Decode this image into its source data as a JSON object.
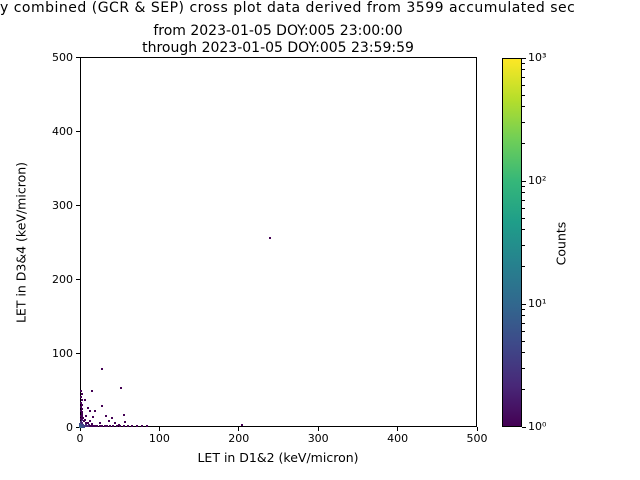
{
  "title": {
    "line1": "y combined (GCR & SEP) cross plot data derived from 3599 accumulated sec",
    "line2": "from 2023-01-05 DOY:005 23:00:00",
    "line3": "through 2023-01-05 DOY:005 23:59:59"
  },
  "chart_data": {
    "type": "scatter",
    "xlabel": "LET in D1&2 (keV/micron)",
    "ylabel": "LET in D3&4 (keV/micron)",
    "xlim": [
      0,
      500
    ],
    "ylim": [
      0,
      500
    ],
    "x_ticks": [
      0,
      100,
      200,
      300,
      400,
      500
    ],
    "y_ticks": [
      0,
      100,
      200,
      300,
      400,
      500
    ],
    "grid": false,
    "colorbar": {
      "label": "Counts",
      "scale": "log",
      "range": [
        1,
        1000
      ],
      "colormap": "viridis",
      "tick_exponents": [
        0,
        1,
        2,
        3
      ],
      "tick_labels": [
        "10⁰",
        "10¹",
        "10²",
        "10³"
      ]
    },
    "points_format": [
      "x_keV_per_micron",
      "y_keV_per_micron",
      "counts"
    ],
    "points": [
      [
        239,
        256,
        1
      ],
      [
        28,
        78,
        1
      ],
      [
        52,
        53,
        1
      ],
      [
        55,
        16,
        1
      ],
      [
        85,
        2,
        1
      ],
      [
        204,
        3,
        1
      ],
      [
        15,
        49,
        1
      ],
      [
        6,
        36,
        1
      ],
      [
        10,
        26,
        1
      ],
      [
        28,
        28,
        1
      ],
      [
        12,
        22,
        1
      ],
      [
        19,
        21,
        1
      ],
      [
        8,
        15,
        1
      ],
      [
        17,
        13,
        1
      ],
      [
        36,
        8,
        1
      ],
      [
        49,
        3,
        1
      ],
      [
        44,
        6,
        1
      ],
      [
        57,
        7,
        1
      ],
      [
        40,
        12,
        1
      ],
      [
        25,
        6,
        1
      ],
      [
        33,
        15,
        1
      ],
      [
        1,
        5,
        2
      ],
      [
        1,
        7,
        2
      ],
      [
        2,
        9,
        2
      ],
      [
        1,
        11,
        1
      ],
      [
        2,
        13,
        1
      ],
      [
        1,
        15,
        1
      ],
      [
        2,
        18,
        1
      ],
      [
        1,
        21,
        1
      ],
      [
        2,
        24,
        1
      ],
      [
        1,
        27,
        1
      ],
      [
        2,
        30,
        1
      ],
      [
        1,
        33,
        1
      ],
      [
        2,
        36,
        1
      ],
      [
        1,
        40,
        1
      ],
      [
        2,
        44,
        1
      ],
      [
        1,
        48,
        1
      ],
      [
        4,
        1,
        2
      ],
      [
        6,
        1,
        2
      ],
      [
        8,
        1,
        2
      ],
      [
        10,
        1,
        2
      ],
      [
        12,
        1,
        1
      ],
      [
        14,
        1,
        1
      ],
      [
        16,
        1,
        1
      ],
      [
        18,
        1,
        1
      ],
      [
        20,
        1,
        1
      ],
      [
        22,
        1,
        1
      ],
      [
        25,
        1,
        1
      ],
      [
        28,
        1,
        1
      ],
      [
        31,
        1,
        1
      ],
      [
        34,
        1,
        1
      ],
      [
        38,
        1,
        1
      ],
      [
        42,
        1,
        1
      ],
      [
        46,
        1,
        1
      ],
      [
        50,
        1,
        1
      ],
      [
        55,
        1,
        1
      ],
      [
        60,
        1,
        1
      ],
      [
        66,
        1,
        1
      ],
      [
        72,
        1,
        1
      ],
      [
        78,
        1,
        1
      ],
      [
        1,
        1,
        10
      ],
      [
        2,
        2,
        8
      ],
      [
        3,
        1,
        6
      ],
      [
        1,
        3,
        5
      ],
      [
        5,
        1,
        5
      ],
      [
        4,
        3,
        4
      ],
      [
        2,
        5,
        4
      ],
      [
        6,
        2,
        3
      ],
      [
        7,
        4,
        2
      ],
      [
        9,
        2,
        2
      ],
      [
        3,
        6,
        2
      ],
      [
        11,
        3,
        2
      ],
      [
        8,
        6,
        1
      ],
      [
        13,
        2,
        1
      ],
      [
        10,
        5,
        1
      ],
      [
        15,
        4,
        1
      ],
      [
        5,
        8,
        1
      ],
      [
        12,
        8,
        1
      ],
      [
        6,
        10,
        1
      ],
      [
        4,
        12,
        1
      ],
      [
        3,
        16,
        1
      ],
      [
        2,
        20,
        1
      ]
    ]
  },
  "colors": {
    "background": "#ffffff",
    "axis": "#000000",
    "point_min_count": "#440154",
    "point_max_count": "#fde725",
    "viridis_stops": [
      "#440154",
      "#482878",
      "#3e4989",
      "#31688e",
      "#26828e",
      "#1f9e89",
      "#35b779",
      "#6ece58",
      "#b5de2b",
      "#fde725"
    ]
  }
}
